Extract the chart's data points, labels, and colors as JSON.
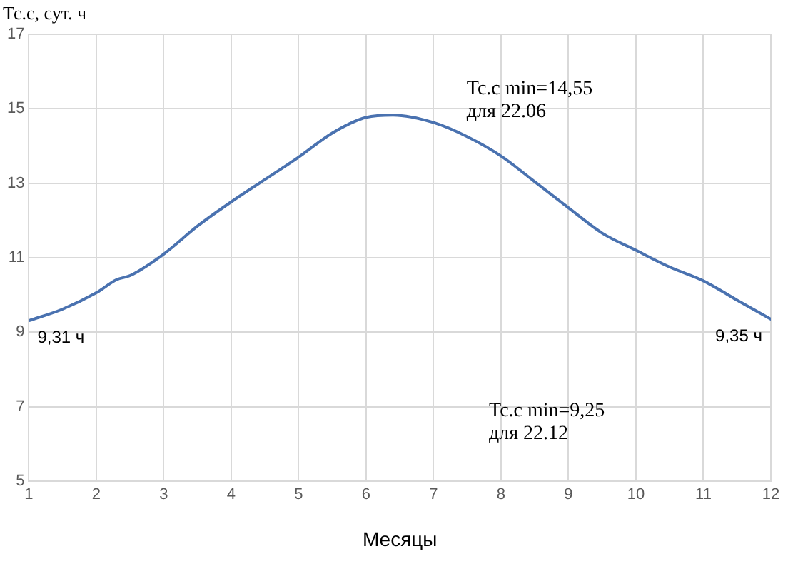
{
  "chart_data": {
    "type": "line",
    "ylabel": "Тс.с, сут. ч",
    "xlabel": "Месяцы",
    "x": [
      1,
      1.5,
      2,
      2.3,
      2.5,
      3,
      3.5,
      4,
      4.5,
      5,
      5.5,
      6,
      6.4,
      7,
      7.5,
      8,
      8.5,
      9,
      9.5,
      10,
      10.5,
      11,
      11.5,
      12
    ],
    "series": [
      {
        "color": "#4a72b0",
        "values": [
          9.31,
          9.62,
          10.06,
          10.41,
          10.52,
          11.1,
          11.85,
          12.5,
          13.1,
          13.7,
          14.35,
          14.77,
          14.83,
          14.63,
          14.25,
          13.73,
          13.04,
          12.34,
          11.66,
          11.2,
          10.75,
          10.38,
          9.86,
          9.35
        ]
      }
    ],
    "xlim": [
      1,
      12
    ],
    "xticks": [
      1,
      2,
      3,
      4,
      5,
      6,
      7,
      8,
      9,
      10,
      11,
      12
    ],
    "ylim": [
      5,
      17
    ],
    "yticks": [
      5,
      7,
      9,
      11,
      13,
      15,
      17
    ],
    "grid": true,
    "legend": false,
    "marker": "none",
    "line_style": "solid",
    "annotations": [
      {
        "text": "9,31 ч",
        "x": 1,
        "y": 9.31
      },
      {
        "text": "9,35 ч",
        "x": 12,
        "y": 9.35
      },
      "Tc.c min=14,55\nдля 22.06",
      "Tc.c min=9,25\nдля 22.12"
    ]
  }
}
